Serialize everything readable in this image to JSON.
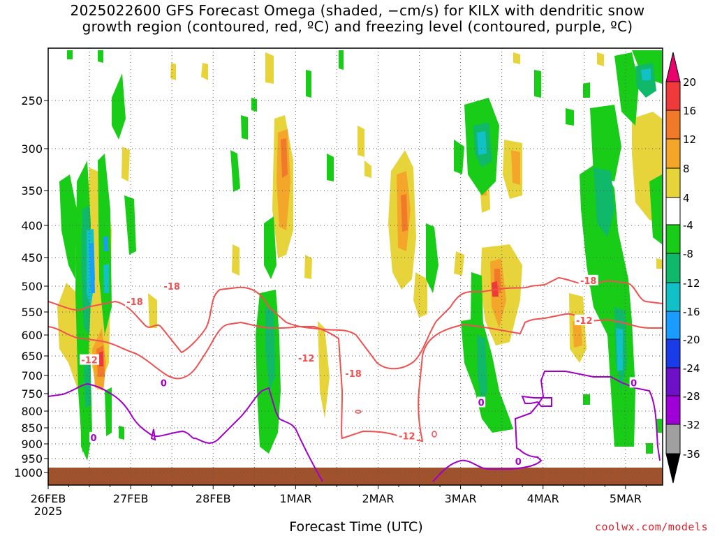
{
  "page": {
    "title_line1": "2025022600 GFS Forecast Omega (shaded, −cm/s) for KILX with dendritic snow",
    "title_line2": "growth region (contoured, red, ºC) and freezing level (contoured, purple, ºC)",
    "credit": "coolwx.com/models"
  },
  "chart_data": {
    "type": "heatmap",
    "xlabel": "Forecast Time (UTC)",
    "x_ticks": [
      {
        "label": "26FEB",
        "sub": "2025",
        "t": 0
      },
      {
        "label": "27FEB",
        "sub": "",
        "t": 1
      },
      {
        "label": "28FEB",
        "sub": "",
        "t": 2
      },
      {
        "label": "1MAR",
        "sub": "",
        "t": 3
      },
      {
        "label": "2MAR",
        "sub": "",
        "t": 4
      },
      {
        "label": "3MAR",
        "sub": "",
        "t": 5
      },
      {
        "label": "4MAR",
        "sub": "",
        "t": 6
      },
      {
        "label": "5MAR",
        "sub": "",
        "t": 7
      }
    ],
    "x_range_days": [
      0,
      7.45
    ],
    "y_ticks_hpa": [
      250,
      300,
      350,
      400,
      450,
      500,
      550,
      600,
      650,
      700,
      750,
      800,
      850,
      900,
      950,
      1000
    ],
    "y_range_hpa": [
      200,
      1025
    ],
    "ground_top_hpa": 985,
    "colorbar": {
      "labels": [
        20,
        16,
        12,
        8,
        4,
        -4,
        -8,
        -12,
        -16,
        -20,
        -24,
        -28,
        -32,
        -36
      ],
      "colors": [
        "#e8006c",
        "#ee3a3a",
        "#f07a2a",
        "#f3a62a",
        "#e6d43a",
        "#ffffff",
        "#18cc18",
        "#10b86a",
        "#12c0c8",
        "#1a9cff",
        "#1a3ce8",
        "#6e10c8",
        "#a000d8",
        "#a0a0a0",
        "#000000"
      ]
    },
    "contours": [
      {
        "label": "-18",
        "color": "#f05050",
        "label_positions": [
          [
            1.5,
            500
          ],
          [
            1.05,
            530
          ],
          [
            3.7,
            695
          ],
          [
            6.55,
            490
          ]
        ]
      },
      {
        "label": "-12",
        "color": "#f05050",
        "label_positions": [
          [
            0.5,
            660
          ],
          [
            3.13,
            655
          ],
          [
            4.35,
            875
          ],
          [
            6.5,
            568
          ]
        ]
      },
      {
        "label": "0",
        "color": "#a000c8",
        "label_positions": [
          [
            0.55,
            880
          ],
          [
            1.4,
            720
          ],
          [
            5.25,
            775
          ],
          [
            5.7,
            960
          ],
          [
            7.1,
            720
          ]
        ]
      }
    ]
  }
}
